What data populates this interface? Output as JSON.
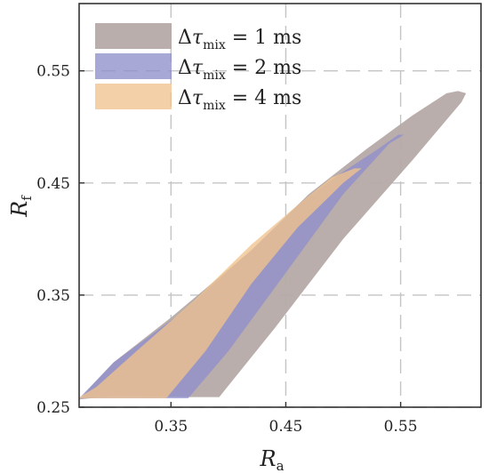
{
  "chart_data": {
    "type": "area",
    "title": "",
    "xlabel": {
      "main": "R",
      "sub": "a"
    },
    "ylabel": {
      "main": "R",
      "sub": "f"
    },
    "xlim": [
      0.27,
      0.62
    ],
    "ylim": [
      0.25,
      0.61
    ],
    "xticks": [
      0.35,
      0.45,
      0.55
    ],
    "yticks": [
      0.25,
      0.35,
      0.45,
      0.55
    ],
    "xtick_labels": [
      "0.35",
      "0.45",
      "0.55"
    ],
    "ytick_labels": [
      "0.25",
      "0.35",
      "0.45",
      "0.55"
    ],
    "grid": true,
    "grid_style": "dashed",
    "legend_position": "top-left",
    "series": [
      {
        "legend": {
          "prefix": "Δ",
          "symbol": "τ",
          "sub": "mix",
          "rest": " = 1 ms"
        },
        "color": "#b5aaa7",
        "polygon": [
          [
            0.27,
            0.257
          ],
          [
            0.3,
            0.26
          ],
          [
            0.36,
            0.259
          ],
          [
            0.392,
            0.259
          ],
          [
            0.44,
            0.32
          ],
          [
            0.5,
            0.4
          ],
          [
            0.56,
            0.47
          ],
          [
            0.603,
            0.522
          ],
          [
            0.607,
            0.53
          ],
          [
            0.6,
            0.532
          ],
          [
            0.59,
            0.53
          ],
          [
            0.56,
            0.51
          ],
          [
            0.52,
            0.48
          ],
          [
            0.47,
            0.44
          ],
          [
            0.42,
            0.39
          ],
          [
            0.35,
            0.33
          ],
          [
            0.3,
            0.29
          ],
          [
            0.272,
            0.259
          ]
        ]
      },
      {
        "legend": {
          "prefix": "Δ",
          "symbol": "τ",
          "sub": "mix",
          "rest": " = 2 ms"
        },
        "color": "#8f8fcc",
        "polygon": [
          [
            0.27,
            0.258
          ],
          [
            0.32,
            0.258
          ],
          [
            0.365,
            0.258
          ],
          [
            0.4,
            0.3
          ],
          [
            0.45,
            0.37
          ],
          [
            0.5,
            0.44
          ],
          [
            0.54,
            0.485
          ],
          [
            0.553,
            0.493
          ],
          [
            0.548,
            0.493
          ],
          [
            0.53,
            0.48
          ],
          [
            0.5,
            0.46
          ],
          [
            0.46,
            0.43
          ],
          [
            0.42,
            0.39
          ],
          [
            0.36,
            0.335
          ],
          [
            0.3,
            0.29
          ],
          [
            0.272,
            0.26
          ]
        ]
      },
      {
        "legend": {
          "prefix": "Δ",
          "symbol": "τ",
          "sub": "mix",
          "rest": " = 4 ms"
        },
        "color": "#f0c38e",
        "polygon": [
          [
            0.27,
            0.258
          ],
          [
            0.3,
            0.258
          ],
          [
            0.346,
            0.258
          ],
          [
            0.38,
            0.3
          ],
          [
            0.42,
            0.36
          ],
          [
            0.46,
            0.41
          ],
          [
            0.5,
            0.45
          ],
          [
            0.516,
            0.463
          ],
          [
            0.51,
            0.463
          ],
          [
            0.49,
            0.455
          ],
          [
            0.46,
            0.43
          ],
          [
            0.42,
            0.395
          ],
          [
            0.37,
            0.345
          ],
          [
            0.32,
            0.3
          ],
          [
            0.285,
            0.268
          ],
          [
            0.272,
            0.26
          ]
        ]
      }
    ]
  }
}
